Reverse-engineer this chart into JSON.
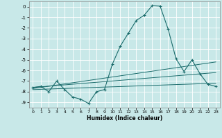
{
  "xlabel": "Humidex (Indice chaleur)",
  "bg_color": "#c8e8e8",
  "grid_color": "#ffffff",
  "line_color": "#1a6b6b",
  "xlim": [
    -0.5,
    23.5
  ],
  "ylim": [
    -9.5,
    0.5
  ],
  "xticks": [
    0,
    1,
    2,
    3,
    4,
    5,
    6,
    7,
    8,
    9,
    10,
    11,
    12,
    13,
    14,
    15,
    16,
    17,
    18,
    19,
    20,
    21,
    22,
    23
  ],
  "yticks": [
    0,
    -1,
    -2,
    -3,
    -4,
    -5,
    -6,
    -7,
    -8,
    -9
  ],
  "curve_x": [
    0,
    1,
    2,
    3,
    4,
    5,
    6,
    7,
    8,
    9,
    10,
    11,
    12,
    13,
    14,
    15,
    16,
    17,
    18,
    19,
    20,
    21,
    22,
    23
  ],
  "curve_y": [
    -7.6,
    -7.5,
    -8.0,
    -7.0,
    -7.8,
    -8.5,
    -8.7,
    -9.1,
    -8.0,
    -7.8,
    -5.4,
    -3.7,
    -2.5,
    -1.3,
    -0.8,
    0.1,
    0.05,
    -2.1,
    -4.9,
    -6.1,
    -5.0,
    -6.3,
    -7.3,
    -7.5
  ],
  "line1_x": [
    0,
    23
  ],
  "line1_y": [
    -7.8,
    -7.2
  ],
  "line2_x": [
    0,
    23
  ],
  "line2_y": [
    -7.6,
    -6.2
  ],
  "line3_x": [
    0,
    23
  ],
  "line3_y": [
    -7.7,
    -5.2
  ]
}
